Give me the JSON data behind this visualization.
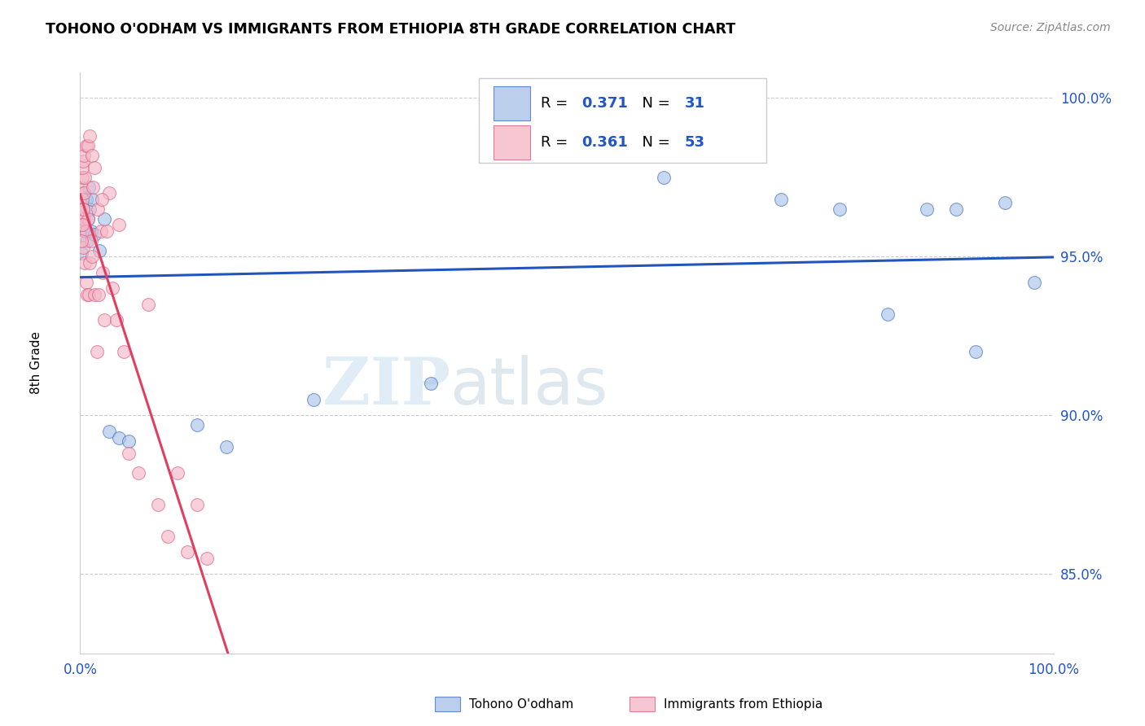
{
  "title": "TOHONO O'ODHAM VS IMMIGRANTS FROM ETHIOPIA 8TH GRADE CORRELATION CHART",
  "source": "Source: ZipAtlas.com",
  "ylabel": "8th Grade",
  "blue_R": 0.371,
  "blue_N": 31,
  "pink_R": 0.361,
  "pink_N": 53,
  "blue_color": "#aac4e8",
  "pink_color": "#f4b8c8",
  "blue_edge_color": "#4472C4",
  "pink_edge_color": "#e06080",
  "blue_line_color": "#2255bb",
  "pink_line_color": "#e04060",
  "legend_label_blue": "Tohono O'odham",
  "legend_label_pink": "Immigrants from Ethiopia",
  "watermark_left": "ZIP",
  "watermark_right": "atlas",
  "blue_scatter_x": [
    0.001,
    0.002,
    0.003,
    0.004,
    0.005,
    0.006,
    0.007,
    0.008,
    0.009,
    0.01,
    0.011,
    0.012,
    0.015,
    0.02,
    0.025,
    0.03,
    0.04,
    0.05,
    0.12,
    0.15,
    0.24,
    0.36,
    0.6,
    0.72,
    0.78,
    0.83,
    0.87,
    0.9,
    0.92,
    0.95,
    0.98
  ],
  "blue_scatter_y": [
    0.951,
    0.965,
    0.97,
    0.96,
    0.958,
    0.968,
    0.955,
    0.962,
    0.972,
    0.965,
    0.958,
    0.968,
    0.957,
    0.952,
    0.962,
    0.895,
    0.893,
    0.892,
    0.897,
    0.89,
    0.905,
    0.91,
    0.975,
    0.968,
    0.965,
    0.932,
    0.965,
    0.965,
    0.92,
    0.967,
    0.942
  ],
  "pink_scatter_x": [
    0.001,
    0.001,
    0.002,
    0.002,
    0.003,
    0.003,
    0.004,
    0.004,
    0.005,
    0.005,
    0.006,
    0.006,
    0.007,
    0.008,
    0.009,
    0.01,
    0.011,
    0.012,
    0.013,
    0.015,
    0.017,
    0.019,
    0.021,
    0.023,
    0.025,
    0.027,
    0.03,
    0.033,
    0.037,
    0.04,
    0.045,
    0.05,
    0.06,
    0.07,
    0.08,
    0.09,
    0.1,
    0.11,
    0.12,
    0.13,
    0.002,
    0.003,
    0.004,
    0.006,
    0.008,
    0.01,
    0.012,
    0.015,
    0.018,
    0.022,
    0.001,
    0.002,
    0.003
  ],
  "pink_scatter_y": [
    0.96,
    0.972,
    0.968,
    0.975,
    0.953,
    0.965,
    0.962,
    0.97,
    0.948,
    0.975,
    0.942,
    0.958,
    0.938,
    0.962,
    0.938,
    0.948,
    0.955,
    0.95,
    0.972,
    0.938,
    0.92,
    0.938,
    0.958,
    0.945,
    0.93,
    0.958,
    0.97,
    0.94,
    0.93,
    0.96,
    0.92,
    0.888,
    0.882,
    0.935,
    0.872,
    0.862,
    0.882,
    0.857,
    0.872,
    0.855,
    0.978,
    0.98,
    0.982,
    0.985,
    0.985,
    0.988,
    0.982,
    0.978,
    0.965,
    0.968,
    0.955,
    0.96,
    0.965
  ],
  "xlim": [
    0.0,
    1.0
  ],
  "ylim": [
    0.825,
    1.008
  ],
  "yticks": [
    0.85,
    0.9,
    0.95,
    1.0
  ],
  "ytick_labels": [
    "85.0%",
    "90.0%",
    "95.0%",
    "100.0%"
  ],
  "figsize": [
    14.06,
    8.92
  ],
  "dpi": 100
}
